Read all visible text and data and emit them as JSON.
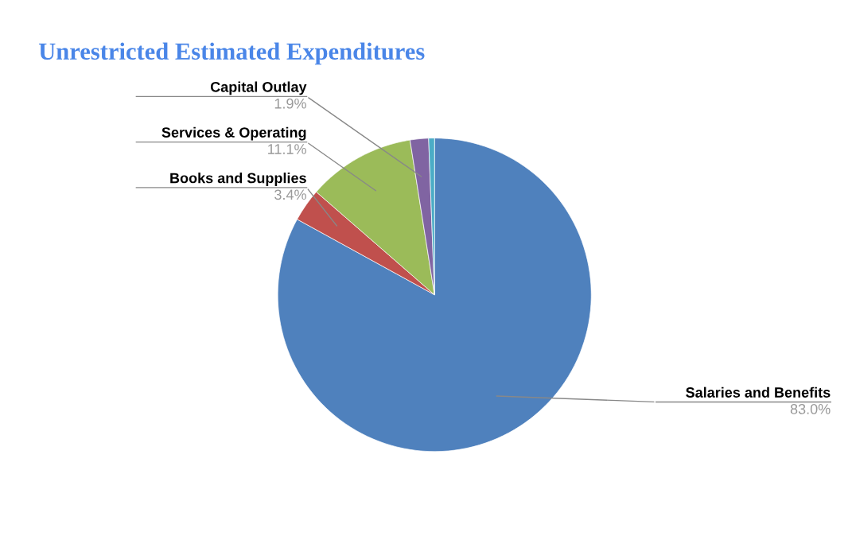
{
  "chart_data": {
    "type": "pie",
    "title": "Unrestricted Estimated Expenditures",
    "categories": [
      "Salaries and Benefits",
      "Books and Supplies",
      "Services & Operating",
      "Capital Outlay",
      null
    ],
    "values": [
      83.0,
      3.4,
      11.1,
      1.9,
      0.6
    ],
    "value_labels": [
      "83.0%",
      "3.4%",
      "11.1%",
      "1.9%",
      null
    ],
    "colors": [
      "#4f81bd",
      "#c0504d",
      "#9bbb59",
      "#8064a2",
      "#4bacc6"
    ],
    "legend": false
  }
}
